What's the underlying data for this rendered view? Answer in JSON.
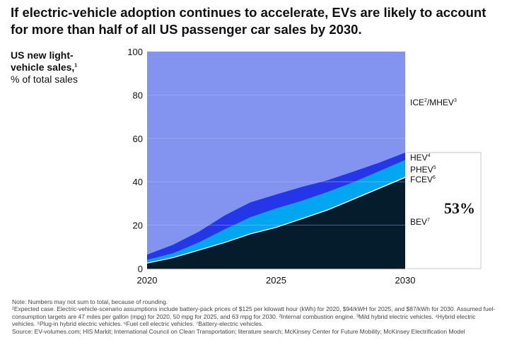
{
  "title": "If electric-vehicle adoption continues to accelerate, EVs are likely to account for more than half of all US passenger car sales by 2030.",
  "ylabel": {
    "line1": "US new light-",
    "line2": "vehicle sales,",
    "line2_sup": "1",
    "unit": "% of total sales"
  },
  "callout": "53%",
  "colors": {
    "ice": "#8293f0",
    "hev": "#2536e8",
    "phev": "#00a7f0",
    "bev": "#051c2c",
    "grid": "#b8c1f3",
    "axis": "#222222"
  },
  "chart_data": {
    "type": "area",
    "stacked": true,
    "x": [
      2020,
      2021,
      2022,
      2023,
      2024,
      2025,
      2026,
      2027,
      2028,
      2029,
      2030
    ],
    "xticks": [
      "2020",
      "2025",
      "2030"
    ],
    "yticks": [
      "0",
      "20",
      "40",
      "60",
      "80",
      "100"
    ],
    "ylim": [
      0,
      100
    ],
    "grid": true,
    "series": [
      {
        "key": "bev",
        "name": "BEV",
        "sup": "7",
        "values": [
          2.5,
          5,
          8.5,
          12,
          16,
          19,
          23,
          27,
          32,
          37,
          42
        ]
      },
      {
        "key": "fcev",
        "name": "FCEV",
        "sup": "6",
        "values": [
          0,
          0,
          0,
          0,
          0.1,
          0.2,
          0.2,
          0.3,
          0.3,
          0.4,
          0.5
        ]
      },
      {
        "key": "phev",
        "name": "PHEV",
        "sup": "5",
        "values": [
          1.5,
          2,
          3.5,
          6,
          7.5,
          8.5,
          8,
          8,
          7.5,
          7.5,
          7.5
        ]
      },
      {
        "key": "hev",
        "name": "HEV",
        "sup": "4",
        "values": [
          2.5,
          4,
          5,
          6.5,
          7,
          6.5,
          6.5,
          5.5,
          5,
          4,
          3.5
        ]
      },
      {
        "key": "ice",
        "name": "ICE",
        "sup": "2",
        "suffix": "/MHEV",
        "suffix_sup": "3",
        "values": [
          93.5,
          89,
          83,
          75.5,
          69.4,
          65.8,
          62.3,
          59.2,
          55.2,
          51.1,
          46.5
        ]
      }
    ]
  },
  "notes": {
    "line1": "Note: Numbers may not sum to total, because of rounding.",
    "line2": "¹Expected case. Electric-vehicle-scenario assumptions include battery-pack prices of $125 per kilowatt hour (kWh) for 2020, $94/kWH for 2025, and $87/kWh for 2030. Assumed fuel-consumption targets are 47 miles per gallon (mpg) for 2020, 50 mpg for 2025, and 63 mpg for 2030. ²Internal combustion engine. ³Mild hybrid electric vehicles. ⁴Hybrid electric vehicles. ⁵Plug-in hybrid electric vehicles. ⁶Fuel cell electric vehicles. ⁷Battery-electric vehicles.",
    "line3": "Source: EV-volumes.com; HIS Markit; International Council on Clean Transportation; literature search; McKinsey Center for Future Mobility; McKinsey Electrification Model"
  }
}
